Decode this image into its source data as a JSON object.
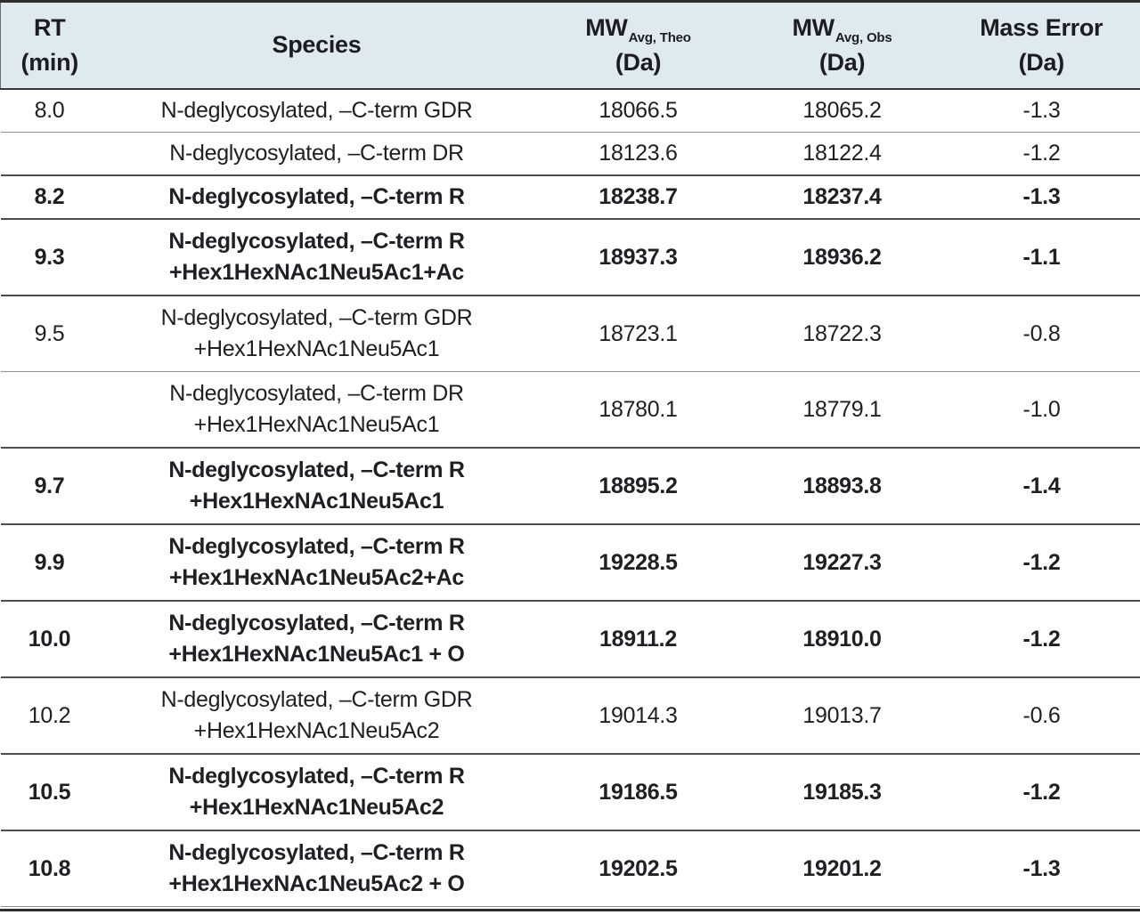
{
  "colors": {
    "header_background": "#dfeaf0",
    "text": "#202024",
    "rule_dark": "#2e2e2e",
    "rule_mid": "#4c4c4c",
    "rule_light": "#8f8f8f"
  },
  "header": {
    "rt": {
      "line1": "RT",
      "line2": "(min)"
    },
    "species": "Species",
    "mw_theo": {
      "main": "MW",
      "sub": "Avg, Theo",
      "unit": "(Da)"
    },
    "mw_obs": {
      "main": "MW",
      "sub": "Avg, Obs",
      "unit": "(Da)"
    },
    "mass_error": {
      "line1": "Mass Error",
      "line2": "(Da)"
    }
  },
  "rows": [
    {
      "rt": "8.0",
      "species_lines": [
        "N-deglycosylated, –C-term GDR"
      ],
      "mw_theo": "18066.5",
      "mw_obs": "18065.2",
      "mass_error": "-1.3",
      "bold": false,
      "rule_above": "normal"
    },
    {
      "rt": "",
      "species_lines": [
        "N-deglycosylated, –C-term DR"
      ],
      "mw_theo": "18123.6",
      "mw_obs": "18122.4",
      "mass_error": "-1.2",
      "bold": false,
      "rule_above": "thin"
    },
    {
      "rt": "8.2",
      "species_lines": [
        "N-deglycosylated, –C-term R"
      ],
      "mw_theo": "18238.7",
      "mw_obs": "18237.4",
      "mass_error": "-1.3",
      "bold": true,
      "rule_above": "normal"
    },
    {
      "rt": "9.3",
      "species_lines": [
        "N-deglycosylated, –C-term R",
        "+Hex1HexNAc1Neu5Ac1+Ac"
      ],
      "mw_theo": "18937.3",
      "mw_obs": "18936.2",
      "mass_error": "-1.1",
      "bold": true,
      "rule_above": "normal"
    },
    {
      "rt": "9.5",
      "species_lines": [
        "N-deglycosylated, –C-term GDR",
        "+Hex1HexNAc1Neu5Ac1"
      ],
      "mw_theo": "18723.1",
      "mw_obs": "18722.3",
      "mass_error": "-0.8",
      "bold": false,
      "rule_above": "normal"
    },
    {
      "rt": "",
      "species_lines": [
        "N-deglycosylated, –C-term DR",
        "+Hex1HexNAc1Neu5Ac1"
      ],
      "mw_theo": "18780.1",
      "mw_obs": "18779.1",
      "mass_error": "-1.0",
      "bold": false,
      "rule_above": "thin"
    },
    {
      "rt": "9.7",
      "species_lines": [
        "N-deglycosylated, –C-term R",
        "+Hex1HexNAc1Neu5Ac1"
      ],
      "mw_theo": "18895.2",
      "mw_obs": "18893.8",
      "mass_error": "-1.4",
      "bold": true,
      "rule_above": "normal"
    },
    {
      "rt": "9.9",
      "species_lines": [
        "N-deglycosylated, –C-term R",
        "+Hex1HexNAc1Neu5Ac2+Ac"
      ],
      "mw_theo": "19228.5",
      "mw_obs": "19227.3",
      "mass_error": "-1.2",
      "bold": true,
      "rule_above": "normal"
    },
    {
      "rt": "10.0",
      "species_lines": [
        "N-deglycosylated, –C-term R",
        "+Hex1HexNAc1Neu5Ac1 + O"
      ],
      "mw_theo": "18911.2",
      "mw_obs": "18910.0",
      "mass_error": "-1.2",
      "bold": true,
      "rule_above": "normal"
    },
    {
      "rt": "10.2",
      "species_lines": [
        "N-deglycosylated, –C-term GDR",
        "+Hex1HexNAc1Neu5Ac2"
      ],
      "mw_theo": "19014.3",
      "mw_obs": "19013.7",
      "mass_error": "-0.6",
      "bold": false,
      "rule_above": "normal"
    },
    {
      "rt": "10.5",
      "species_lines": [
        "N-deglycosylated, –C-term R",
        "+Hex1HexNAc1Neu5Ac2"
      ],
      "mw_theo": "19186.5",
      "mw_obs": "19185.3",
      "mass_error": "-1.2",
      "bold": true,
      "rule_above": "normal"
    },
    {
      "rt": "10.8",
      "species_lines": [
        "N-deglycosylated, –C-term R",
        "+Hex1HexNAc1Neu5Ac2 + O"
      ],
      "mw_theo": "19202.5",
      "mw_obs": "19201.2",
      "mass_error": "-1.3",
      "bold": true,
      "rule_above": "normal"
    }
  ]
}
